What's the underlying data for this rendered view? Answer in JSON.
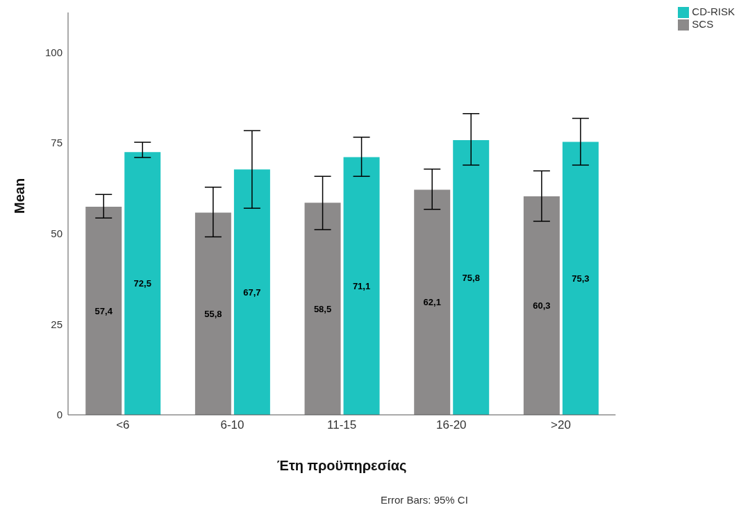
{
  "chart_data": {
    "type": "bar",
    "xlabel": "Έτη προϋπηρεσίας",
    "ylabel": "Mean",
    "categories": [
      "<6",
      "6-10",
      "11-15",
      "16-20",
      ">20"
    ],
    "series": [
      {
        "name": "SCS",
        "color": "#8c8a8a",
        "values": [
          57.4,
          55.8,
          58.5,
          62.1,
          60.3
        ],
        "value_labels": [
          "57,4",
          "55,8",
          "58,5",
          "62,1",
          "60,3"
        ],
        "errors": [
          [
            54.3,
            60.8
          ],
          [
            49.1,
            62.8
          ],
          [
            51.1,
            65.8
          ],
          [
            56.7,
            67.8
          ],
          [
            53.4,
            67.3
          ]
        ]
      },
      {
        "name": "CD-RISK",
        "color": "#1ec4c0",
        "values": [
          72.5,
          67.7,
          71.1,
          75.8,
          75.3
        ],
        "value_labels": [
          "72,5",
          "67,7",
          "71,1",
          "75,8",
          "75,3"
        ],
        "errors": [
          [
            71.0,
            75.2
          ],
          [
            57.0,
            78.4
          ],
          [
            65.8,
            76.6
          ],
          [
            68.9,
            83.1
          ],
          [
            68.9,
            81.8
          ]
        ]
      }
    ],
    "ylim": [
      0,
      111
    ],
    "yticks": [
      0,
      25,
      50,
      75,
      100
    ],
    "grid": false,
    "legend": "top right",
    "annotations": [
      "Error Bars: 95% CI"
    ]
  }
}
